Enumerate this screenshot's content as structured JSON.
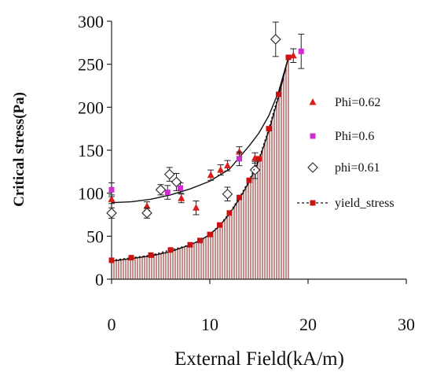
{
  "chart_data": {
    "type": "scatter",
    "xlabel": "External Field(kA/m)",
    "ylabel": "Critical stress(Pa)",
    "xlim": [
      0,
      30
    ],
    "ylim": [
      0,
      300
    ],
    "xticks": [
      "0",
      "10",
      "20",
      "30"
    ],
    "yticks": [
      "0",
      "50",
      "100",
      "150",
      "200",
      "250",
      "300"
    ],
    "legend_position": "right",
    "series": [
      {
        "name": "Phi=0.62",
        "marker": "triangle",
        "color": "#dd1c1c",
        "points": [
          [
            0,
            93
          ],
          [
            3.6,
            85
          ],
          [
            7.1,
            94
          ],
          [
            8.6,
            83
          ],
          [
            10.1,
            121
          ],
          [
            11.1,
            127
          ],
          [
            11.8,
            132
          ],
          [
            13,
            148
          ],
          [
            14.6,
            141
          ],
          [
            18.5,
            260
          ]
        ],
        "errors": [
          5,
          5,
          5,
          8,
          6,
          6,
          6,
          6,
          6,
          8
        ]
      },
      {
        "name": "Phi=0.6",
        "marker": "square",
        "color": "#d02cd0",
        "points": [
          [
            0,
            104
          ],
          [
            5.7,
            101
          ],
          [
            7,
            106
          ],
          [
            13,
            140
          ],
          [
            19.3,
            265
          ]
        ],
        "errors": [
          8,
          8,
          6,
          8,
          20
        ]
      },
      {
        "name": "phi=0.61",
        "marker": "diamond",
        "color": "#333333",
        "points": [
          [
            0,
            77
          ],
          [
            3.6,
            77
          ],
          [
            5,
            104
          ],
          [
            5.9,
            122
          ],
          [
            6.6,
            113
          ],
          [
            11.8,
            99
          ],
          [
            14.6,
            127
          ],
          [
            16.7,
            279
          ]
        ],
        "errors": [
          6,
          6,
          6,
          8,
          10,
          8,
          10,
          20
        ]
      },
      {
        "name": "yield_stress",
        "marker": "square",
        "line": "dotted",
        "color": "#cc1111",
        "x": [
          0,
          2,
          4,
          6,
          8,
          9,
          10,
          11,
          12,
          13,
          14,
          15,
          16,
          17,
          18
        ],
        "y": [
          22,
          25,
          28,
          34,
          40,
          45,
          52,
          63,
          77,
          95,
          115,
          140,
          175,
          215,
          258
        ]
      }
    ],
    "fit_curves": [
      {
        "x": [
          0,
          2,
          4,
          6,
          8,
          10,
          12,
          14,
          15,
          16,
          17,
          18
        ],
        "y": [
          89,
          90,
          93,
          98,
          105,
          114,
          128,
          155,
          170,
          190,
          218,
          258
        ]
      },
      {
        "x": [
          0,
          2,
          4,
          6,
          8,
          9,
          10,
          11,
          12,
          13,
          14,
          15,
          16,
          17,
          18
        ],
        "y": [
          21,
          24,
          27,
          32,
          40,
          45,
          52,
          62,
          76,
          93,
          113,
          138,
          172,
          212,
          258
        ]
      }
    ],
    "fill": {
      "color": "#8b1a1a",
      "x_min": 0,
      "x_max": 18
    }
  }
}
